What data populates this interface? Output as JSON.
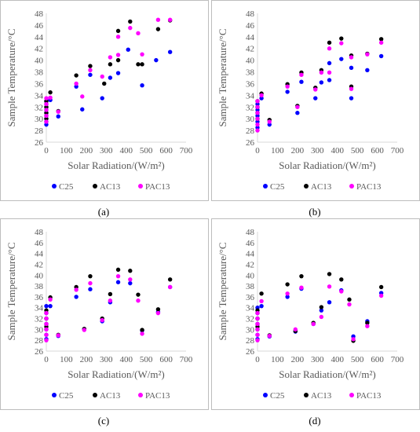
{
  "chart_data": [
    {
      "panel": "(a)",
      "type": "scatter",
      "xlabel": "Solar Radiation/(W/m²)",
      "ylabel": "Sample Temperature/°C",
      "xlim": [
        0,
        700
      ],
      "ylim": [
        26,
        48
      ],
      "xticks": [
        "0",
        "100",
        "200",
        "300",
        "400",
        "500",
        "600",
        "700"
      ],
      "yticks": [
        "26",
        "28",
        "30",
        "32",
        "34",
        "36",
        "38",
        "40",
        "42",
        "44",
        "46",
        "48"
      ],
      "legend_position": "bottom",
      "series": [
        {
          "name": "C25",
          "color": "#0000ff",
          "points": [
            [
              0,
              29
            ],
            [
              0,
              29.5
            ],
            [
              0,
              30
            ],
            [
              0,
              30.5
            ],
            [
              0,
              31
            ],
            [
              0,
              31.5
            ],
            [
              0,
              32
            ],
            [
              0,
              32.5
            ],
            [
              0,
              33
            ],
            [
              20,
              33.2
            ],
            [
              60,
              30.4
            ],
            [
              150,
              35.5
            ],
            [
              180,
              31.6
            ],
            [
              220,
              37.5
            ],
            [
              280,
              33.5
            ],
            [
              320,
              37
            ],
            [
              360,
              37.8
            ],
            [
              410,
              41.8
            ],
            [
              480,
              35.7
            ],
            [
              550,
              40
            ],
            [
              620,
              41.4
            ]
          ]
        },
        {
          "name": "AC13",
          "color": "#000000",
          "points": [
            [
              0,
              30
            ],
            [
              0,
              31
            ],
            [
              0,
              32
            ],
            [
              0,
              33
            ],
            [
              20,
              34.5
            ],
            [
              60,
              31.3
            ],
            [
              150,
              37.4
            ],
            [
              220,
              39
            ],
            [
              290,
              36
            ],
            [
              320,
              39.3
            ],
            [
              360,
              40
            ],
            [
              360,
              45
            ],
            [
              420,
              46.6
            ],
            [
              460,
              39.3
            ],
            [
              480,
              39.3
            ],
            [
              560,
              45.3
            ],
            [
              620,
              46.8
            ]
          ]
        },
        {
          "name": "PAC13",
          "color": "#ff00ff",
          "points": [
            [
              0,
              29.5
            ],
            [
              0,
              30.5
            ],
            [
              0,
              31.5
            ],
            [
              0,
              32.5
            ],
            [
              0,
              33.5
            ],
            [
              20,
              33.6
            ],
            [
              60,
              31.2
            ],
            [
              150,
              36
            ],
            [
              180,
              33.8
            ],
            [
              220,
              38.3
            ],
            [
              280,
              37.2
            ],
            [
              320,
              40.5
            ],
            [
              360,
              40.9
            ],
            [
              360,
              44
            ],
            [
              420,
              45.5
            ],
            [
              460,
              44.6
            ],
            [
              480,
              41
            ],
            [
              560,
              46.9
            ],
            [
              620,
              46.9
            ]
          ]
        }
      ]
    },
    {
      "panel": "(b)",
      "type": "scatter",
      "xlabel": "Solar Radiation/(W/m²)",
      "ylabel": "Sample Temperature/°C",
      "xlim": [
        0,
        700
      ],
      "ylim": [
        26,
        48
      ],
      "xticks": [
        "0",
        "100",
        "200",
        "300",
        "400",
        "500",
        "600",
        "700"
      ],
      "yticks": [
        "26",
        "28",
        "30",
        "32",
        "34",
        "36",
        "38",
        "40",
        "42",
        "44",
        "46",
        "48"
      ],
      "legend_position": "bottom",
      "series": [
        {
          "name": "C25",
          "color": "#0000ff",
          "points": [
            [
              0,
              28.5
            ],
            [
              0,
              29.5
            ],
            [
              0,
              30.5
            ],
            [
              0,
              31.5
            ],
            [
              0,
              32.5
            ],
            [
              20,
              33.5
            ],
            [
              60,
              29
            ],
            [
              150,
              34.6
            ],
            [
              200,
              31
            ],
            [
              220,
              36.3
            ],
            [
              290,
              33.5
            ],
            [
              320,
              36.2
            ],
            [
              360,
              36.6
            ],
            [
              360,
              39.5
            ],
            [
              420,
              40.2
            ],
            [
              470,
              33.5
            ],
            [
              470,
              38.7
            ],
            [
              550,
              38.3
            ],
            [
              620,
              40.7
            ]
          ]
        },
        {
          "name": "AC13",
          "color": "#000000",
          "points": [
            [
              0,
              30
            ],
            [
              0,
              31
            ],
            [
              0,
              32
            ],
            [
              0,
              33
            ],
            [
              20,
              34.3
            ],
            [
              60,
              29.8
            ],
            [
              150,
              35.9
            ],
            [
              200,
              32.2
            ],
            [
              220,
              37.9
            ],
            [
              290,
              35.3
            ],
            [
              320,
              38.3
            ],
            [
              360,
              43
            ],
            [
              420,
              43.7
            ],
            [
              470,
              35.5
            ],
            [
              470,
              40.8
            ],
            [
              550,
              41.1
            ],
            [
              620,
              43.6
            ]
          ]
        },
        {
          "name": "PAC13",
          "color": "#ff00ff",
          "points": [
            [
              0,
              28
            ],
            [
              0,
              29
            ],
            [
              0,
              30
            ],
            [
              0,
              31
            ],
            [
              0,
              32
            ],
            [
              0,
              33
            ],
            [
              20,
              34
            ],
            [
              60,
              29.5
            ],
            [
              150,
              35.5
            ],
            [
              200,
              32
            ],
            [
              220,
              37.5
            ],
            [
              290,
              35
            ],
            [
              320,
              37.9
            ],
            [
              360,
              37.9
            ],
            [
              360,
              42
            ],
            [
              420,
              42.9
            ],
            [
              470,
              35.1
            ],
            [
              470,
              40.5
            ],
            [
              550,
              41
            ],
            [
              620,
              43
            ]
          ]
        }
      ]
    },
    {
      "panel": "(c)",
      "type": "scatter",
      "xlabel": "Solar Radiation/(W/m²)",
      "ylabel": "Sample Temperature/°C",
      "xlim": [
        0,
        700
      ],
      "ylim": [
        26,
        48
      ],
      "xticks": [
        "0",
        "100",
        "200",
        "300",
        "400",
        "500",
        "600",
        "700"
      ],
      "yticks": [
        "26",
        "28",
        "30",
        "32",
        "34",
        "36",
        "38",
        "40",
        "42",
        "44",
        "46",
        "48"
      ],
      "legend_position": "bottom",
      "series": [
        {
          "name": "C25",
          "color": "#0000ff",
          "points": [
            [
              0,
              28.2
            ],
            [
              0,
              29
            ],
            [
              0,
              30
            ],
            [
              0,
              31
            ],
            [
              0,
              32
            ],
            [
              0,
              33
            ],
            [
              0,
              34.3
            ],
            [
              20,
              34.3
            ],
            [
              60,
              28.8
            ],
            [
              150,
              36
            ],
            [
              190,
              30
            ],
            [
              220,
              37.4
            ],
            [
              280,
              31.5
            ],
            [
              320,
              35
            ],
            [
              360,
              38.7
            ],
            [
              420,
              38.5
            ],
            [
              480,
              29.8
            ],
            [
              560,
              33.2
            ],
            [
              620,
              37.8
            ]
          ]
        },
        {
          "name": "AC13",
          "color": "#000000",
          "points": [
            [
              0,
              30.5
            ],
            [
              0,
              32
            ],
            [
              0,
              33.5
            ],
            [
              20,
              35.9
            ],
            [
              60,
              29
            ],
            [
              150,
              37.8
            ],
            [
              190,
              30.1
            ],
            [
              220,
              39.8
            ],
            [
              280,
              32
            ],
            [
              320,
              36.5
            ],
            [
              360,
              41
            ],
            [
              420,
              40.8
            ],
            [
              460,
              36.4
            ],
            [
              480,
              29.9
            ],
            [
              560,
              33.7
            ],
            [
              620,
              39.2
            ]
          ]
        },
        {
          "name": "PAC13",
          "color": "#ff00ff",
          "points": [
            [
              0,
              28
            ],
            [
              0,
              29
            ],
            [
              0,
              30
            ],
            [
              0,
              31
            ],
            [
              0,
              32
            ],
            [
              0,
              33
            ],
            [
              20,
              35.5
            ],
            [
              60,
              28.9
            ],
            [
              150,
              37.3
            ],
            [
              190,
              29.9
            ],
            [
              220,
              38.5
            ],
            [
              280,
              31.7
            ],
            [
              320,
              35.3
            ],
            [
              360,
              39.8
            ],
            [
              420,
              39.2
            ],
            [
              460,
              35.3
            ],
            [
              480,
              29.2
            ],
            [
              560,
              33
            ],
            [
              620,
              37.8
            ]
          ]
        }
      ]
    },
    {
      "panel": "(d)",
      "type": "scatter",
      "xlabel": "Solar Radiation/(W/m²)",
      "ylabel": "Sample Temperature/°C",
      "xlim": [
        0,
        700
      ],
      "ylim": [
        26,
        48
      ],
      "xticks": [
        "0",
        "100",
        "200",
        "300",
        "400",
        "500",
        "600",
        "700"
      ],
      "yticks": [
        "26",
        "28",
        "30",
        "32",
        "34",
        "36",
        "38",
        "40",
        "42",
        "44",
        "46",
        "48"
      ],
      "legend_position": "bottom",
      "series": [
        {
          "name": "C25",
          "color": "#0000ff",
          "points": [
            [
              0,
              28.2
            ],
            [
              0,
              29
            ],
            [
              0,
              30
            ],
            [
              0,
              31
            ],
            [
              0,
              32
            ],
            [
              0,
              33
            ],
            [
              0,
              34
            ],
            [
              20,
              34.3
            ],
            [
              60,
              28.7
            ],
            [
              150,
              36
            ],
            [
              190,
              29.6
            ],
            [
              220,
              37.5
            ],
            [
              280,
              31
            ],
            [
              320,
              33.5
            ],
            [
              360,
              35
            ],
            [
              420,
              37.2
            ],
            [
              480,
              28.7
            ],
            [
              550,
              31.5
            ],
            [
              620,
              36.7
            ]
          ]
        },
        {
          "name": "AC13",
          "color": "#000000",
          "points": [
            [
              0,
              30.5
            ],
            [
              0,
              32
            ],
            [
              0,
              33.5
            ],
            [
              20,
              36.6
            ],
            [
              60,
              28.9
            ],
            [
              150,
              38.3
            ],
            [
              190,
              29.7
            ],
            [
              220,
              39.8
            ],
            [
              280,
              31.2
            ],
            [
              320,
              34.1
            ],
            [
              360,
              40.2
            ],
            [
              420,
              39.2
            ],
            [
              460,
              35.5
            ],
            [
              480,
              27.9
            ],
            [
              550,
              31.2
            ],
            [
              620,
              37.8
            ]
          ]
        },
        {
          "name": "PAC13",
          "color": "#ff00ff",
          "points": [
            [
              0,
              28
            ],
            [
              0,
              29
            ],
            [
              0,
              30
            ],
            [
              0,
              31
            ],
            [
              0,
              32
            ],
            [
              0,
              33
            ],
            [
              20,
              35.2
            ],
            [
              60,
              28.8
            ],
            [
              150,
              36.6
            ],
            [
              190,
              30
            ],
            [
              220,
              37.7
            ],
            [
              280,
              31
            ],
            [
              320,
              32.3
            ],
            [
              360,
              37.9
            ],
            [
              420,
              37
            ],
            [
              460,
              34.6
            ],
            [
              480,
              28.2
            ],
            [
              550,
              30.6
            ],
            [
              620,
              36.2
            ]
          ]
        }
      ]
    }
  ]
}
